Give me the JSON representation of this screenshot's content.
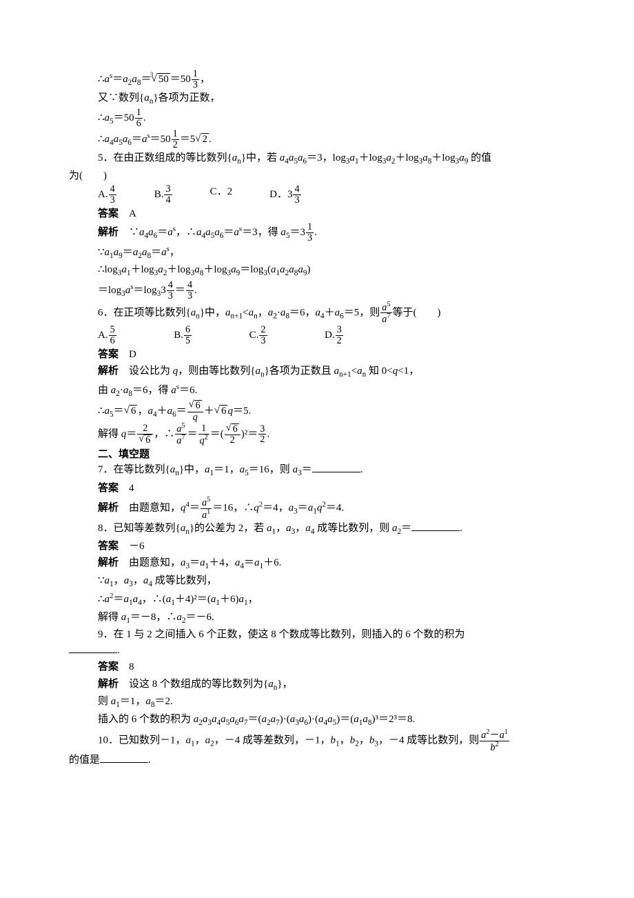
{
  "intro": {
    "line1_a": "∴",
    "line1_b": "＝",
    "line1_c": "＝",
    "line1_d": "＝50",
    "line1_frac_num": "1",
    "line1_frac_den": "3",
    "line1_end": "，",
    "root_idx": "3",
    "root_rad": "50",
    "a_s": "a",
    "a_sup": "s",
    "a2a8": "a",
    "line2": "又∵数列{",
    "line2_an": "a",
    "line2_sub": "n",
    "line2_b": "}各项为正数，",
    "line3_a": "∴",
    "line3_b": "＝50",
    "line3_frac_num": "1",
    "line3_frac_den": "6",
    "line3_end": ".",
    "a5": "a",
    "line4_a": "∴",
    "line4_b": "＝",
    "line4_c": "＝50",
    "line4_d": "＝5",
    "line4_end": ".",
    "line4_frac_num": "1",
    "line4_frac_den": "2",
    "line4_sqrt": "2",
    "a4a5a6": "a"
  },
  "q5": {
    "stem_a": "5．在由正数组成的等比数列{",
    "stem_b": "}中，若 ",
    "stem_c": "＝3，log",
    "stem_d": "＋log",
    "stem_e": "＋log",
    "stem_f": "＋log",
    "stem_g": " 的值",
    "stem_wrap": "为(　　)",
    "optA_pre": "A.",
    "optA_num": "4",
    "optA_den": "3",
    "optB_pre": "B.",
    "optB_num": "3",
    "optB_den": "4",
    "optC": "C．2",
    "optD_pre": "D．3",
    "optD_num": "4",
    "optD_den": "3",
    "ans_label": "答案",
    "ans_val": "　A",
    "exp_label": "解析",
    "e1_a": "　∵",
    "e1_b": "＝",
    "e1_c": "，∴",
    "e1_d": "＝",
    "e1_e": "＝3，得 ",
    "e1_f": "＝3",
    "e1_end": ".",
    "e1_frac_num": "1",
    "e1_frac_den": "3",
    "e2_a": "∵",
    "e2_b": "＝",
    "e2_c": "＝",
    "e2_end": "，",
    "e3_a": "∴log",
    "e3_b": "＋log",
    "e3_c": "＋log",
    "e3_d": "＋log",
    "e3_e": "＝log",
    "e3_f": "(",
    "e3_g": ")",
    "e4_a": "＝log",
    "e4_b": "＝log",
    "e4_c": "3",
    "e4_d": "＝",
    "e4_end": ".",
    "e4_fracA_num": "4",
    "e4_fracA_den": "3",
    "e4_fracB_num": "4",
    "e4_fracB_den": "3"
  },
  "q6": {
    "stem_a": "6．在正项等比数列{",
    "stem_b": "}中，",
    "cond_a": "<",
    "cond_comma": "，",
    "cond_b": "·",
    "cond_c": "＝6，",
    "cond_d": "＋",
    "cond_e": "＝5，则",
    "cond_f": "等于(　　)",
    "frac_num": "a",
    "optA_pre": "A.",
    "optA_num": "5",
    "optA_den": "6",
    "optB_pre": "B.",
    "optB_num": "6",
    "optB_den": "5",
    "optC_pre": "C.",
    "optC_num": "2",
    "optC_den": "3",
    "optD_pre": "D.",
    "optD_num": "3",
    "optD_den": "2",
    "ans_label": "答案",
    "ans_val": "　D",
    "exp_label": "解析",
    "e1": "　设公比为 ",
    "e1_q": "q",
    "e1_b": "，则由等比数列{",
    "e1_c": "}各项为正数且 ",
    "e1_d": "<",
    "e1_e": " 知 0<",
    "e1_f": "<1，",
    "e2_a": "由 ",
    "e2_b": "·",
    "e2_c": "＝6，得 ",
    "e2_d": "＝6.",
    "e3_a": "∴",
    "e3_b": "＝",
    "e3_sqrt": "6",
    "e3_c": "，",
    "e3_d": "＋",
    "e3_e": "＝",
    "e3_fracA_num": "",
    "e3_fracA_den": "q",
    "e3_f": "＋",
    "e3_g": "＝5.",
    "e4_a": "解得 ",
    "e4_b": "＝",
    "e4_fracA_num": "2",
    "e4_fracA_den_sqrt": "6",
    "e4_c": "，∴",
    "e4_d": "＝",
    "e4_fracB_num": "1",
    "e4_e": "＝(",
    "e4_fracC_den": "2",
    "e4_f": ")²＝",
    "e4_fracD_num": "3",
    "e4_fracD_den": "2",
    "e4_end": "."
  },
  "sec2": {
    "heading": "二、填空题"
  },
  "q7": {
    "stem_a": "7．在等比数列{",
    "stem_b": "}中，",
    "stem_c": "＝1，",
    "stem_d": "＝16，则 ",
    "stem_e": "＝",
    "stem_end": ".",
    "ans_label": "答案",
    "ans_val": "　4",
    "exp_label": "解析",
    "e1_a": "　由题意知，",
    "e1_b": "＝",
    "e1_c": "＝16，∴",
    "e1_d": "＝4，",
    "e1_e": "＝",
    "e1_f": "＝4.",
    "frac_num": "a",
    "q4": "q"
  },
  "q8": {
    "stem_a": "8．已知等差数列{",
    "stem_b": "}的公差为 2，若 ",
    "stem_c": "，",
    "stem_d": "，",
    "stem_e": " 成等比数列，则 ",
    "stem_f": "＝",
    "stem_end": ".",
    "ans_label": "答案",
    "ans_val": "　－6",
    "exp_label": "解析",
    "e1_a": "　由题意知，",
    "e1_b": "＝",
    "e1_c": "＋4，",
    "e1_d": "＝",
    "e1_e": "＋6.",
    "e2_a": "∵",
    "e2_b": "，",
    "e2_c": "，",
    "e2_d": " 成等比数列，",
    "e3_a": "∴",
    "e3_b": "＝",
    "e3_c": "，∴(",
    "e3_d": "＋4)²＝(",
    "e3_e": "＋6)",
    "e3_f": "，",
    "e4_a": "解得 ",
    "e4_b": "＝－8，∴",
    "e4_c": "＝－6."
  },
  "q9": {
    "stem": "9．在 1 与 2 之间插入 6 个正数，使这 8 个数成等比数列，则插入的 6 个数的积为",
    "stem_end": ".",
    "ans_label": "答案",
    "ans_val": "　8",
    "exp_label": "解析",
    "e1": "　设这 8 个数组成的等比数列为{",
    "e1_b": "}，",
    "e2_a": "则 ",
    "e2_b": "＝1，",
    "e2_c": "＝2.",
    "e3_a": "插入的 6 个数的积为 ",
    "e3_b": "＝(",
    "e3_c": ")·(",
    "e3_d": ")·(",
    "e3_e": ")＝(",
    "e3_f": ")³＝2³＝8."
  },
  "q10": {
    "stem_a": "10．已知数列－1，",
    "stem_b": "，",
    "stem_c": "，－4 成等差数列，－1，",
    "stem_d": "，",
    "stem_e": "，",
    "stem_f": "，－4 成等比数列，则",
    "frac_num_a": "a",
    "frac_num_sup2": "2",
    "frac_num_minus": "－",
    "frac_num_sup1": "1",
    "frac_den_b": "b",
    "wrap": "的值是",
    "wrap_end": "."
  }
}
